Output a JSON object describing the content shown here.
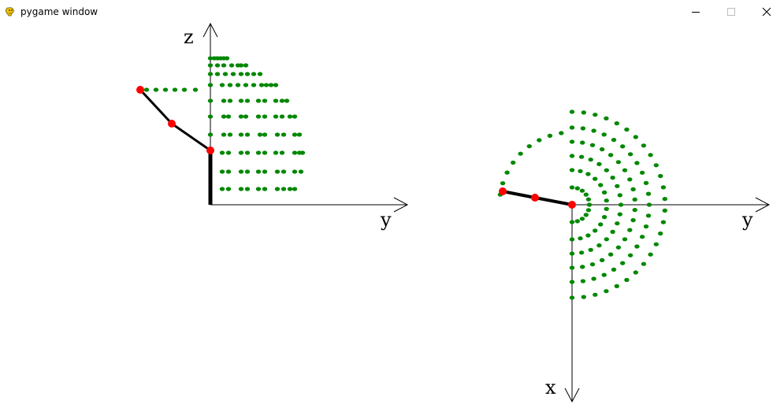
{
  "window": {
    "title": "pygame window",
    "icon": "pygame-snake-icon",
    "controls": [
      "minimize-icon",
      "maximize-icon",
      "close-icon"
    ]
  },
  "views": {
    "side": {
      "vertical_axis_label": "z",
      "horizontal_axis_label": "y"
    },
    "top": {
      "vertical_axis_label": "x",
      "horizontal_axis_label": "y"
    }
  },
  "colors": {
    "point": "#008800",
    "joint": "#ff0000",
    "link": "#000000",
    "axis": "#000000"
  }
}
